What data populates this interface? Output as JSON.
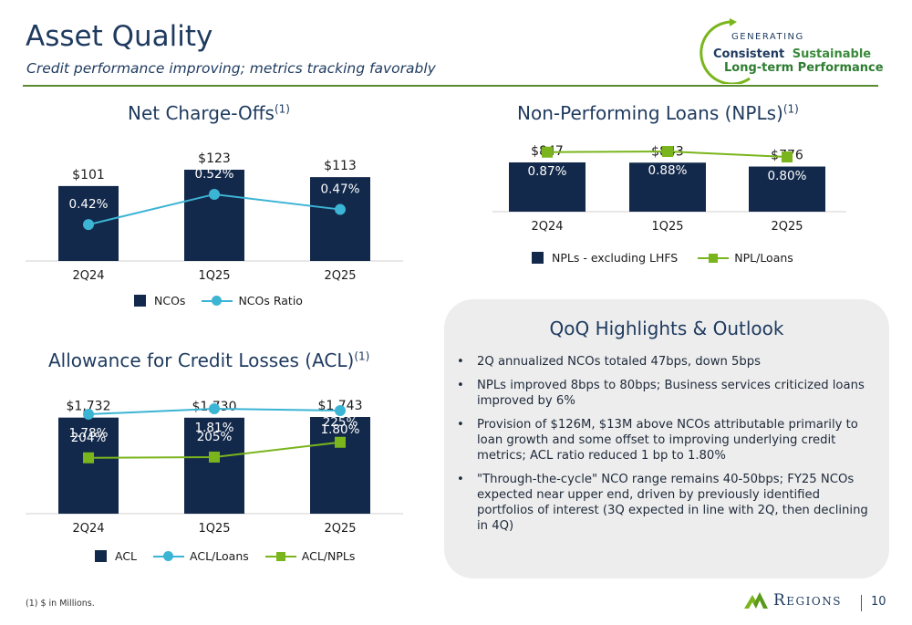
{
  "header": {
    "title": "Asset Quality",
    "subtitle": "Credit performance improving; metrics tracking favorably"
  },
  "tagline": {
    "line1": "GENERATING",
    "line2a": "Consistent",
    "line2b": "Sustainable",
    "line3": "Long-term Performance"
  },
  "colors": {
    "navy": "#13294b",
    "teal": "#3cb4d4",
    "green": "#7ab51d",
    "title_blue": "#1e3a5f"
  },
  "nco": {
    "title": "Net Charge-Offs",
    "footnote_ref": "(1)",
    "legend_bar": "NCOs",
    "legend_line": "NCOs Ratio"
  },
  "npl": {
    "title": "Non-Performing Loans (NPLs)",
    "footnote_ref": "(1)",
    "legend_bar": "NPLs - excluding LHFS",
    "legend_line": "NPL/Loans"
  },
  "acl": {
    "title": "Allowance for Credit Losses (ACL)",
    "footnote_ref": "(1)",
    "legend_bar": "ACL",
    "legend_line1": "ACL/Loans",
    "legend_line2": "ACL/NPLs"
  },
  "chart_data": [
    {
      "type": "bar",
      "categories": [
        "2Q24",
        "1Q25",
        "2Q25"
      ],
      "series": [
        {
          "name": "NCOs",
          "values": [
            101,
            123,
            113
          ],
          "labels": [
            "$101",
            "$123",
            "$113"
          ]
        },
        {
          "name": "NCOs Ratio",
          "type": "line",
          "values": [
            0.42,
            0.52,
            0.47
          ],
          "labels": [
            "0.42%",
            "0.52%",
            "0.47%"
          ]
        }
      ]
    },
    {
      "type": "bar",
      "categories": [
        "2Q24",
        "1Q25",
        "2Q25"
      ],
      "series": [
        {
          "name": "NPLs - excluding LHFS",
          "values": [
            847,
            843,
            776
          ],
          "labels": [
            "$847",
            "$843",
            "$776"
          ]
        },
        {
          "name": "NPL/Loans",
          "type": "line",
          "values": [
            0.87,
            0.88,
            0.8
          ],
          "labels": [
            "0.87%",
            "0.88%",
            "0.80%"
          ]
        }
      ]
    },
    {
      "type": "bar",
      "categories": [
        "2Q24",
        "1Q25",
        "2Q25"
      ],
      "series": [
        {
          "name": "ACL",
          "values": [
            1732,
            1730,
            1743
          ],
          "labels": [
            "$1,732",
            "$1,730",
            "$1,743"
          ]
        },
        {
          "name": "ACL/Loans",
          "type": "line",
          "values": [
            1.78,
            1.81,
            1.8
          ],
          "labels": [
            "1.78%",
            "1.81%",
            "1.80%"
          ]
        },
        {
          "name": "ACL/NPLs",
          "type": "line",
          "values": [
            204,
            205,
            225
          ],
          "labels": [
            "204%",
            "205%",
            "225%"
          ]
        }
      ]
    }
  ],
  "highlights": {
    "title": "QoQ Highlights & Outlook",
    "items": [
      "2Q annualized NCOs totaled 47bps, down 5bps",
      "NPLs improved 8bps to 80bps;  Business services criticized loans improved by 6%",
      "Provision of $126M, $13M above NCOs attributable primarily to loan growth and some offset to improving underlying credit metrics; ACL ratio reduced 1 bp to 1.80%",
      "\"Through-the-cycle\" NCO range remains 40-50bps; FY25 NCOs expected near upper end, driven by previously identified portfolios of interest (3Q expected in line with 2Q, then declining in 4Q)"
    ]
  },
  "footer": {
    "footnote": "(1) $ in Millions.",
    "brand": "Regions",
    "page_number": "10"
  }
}
